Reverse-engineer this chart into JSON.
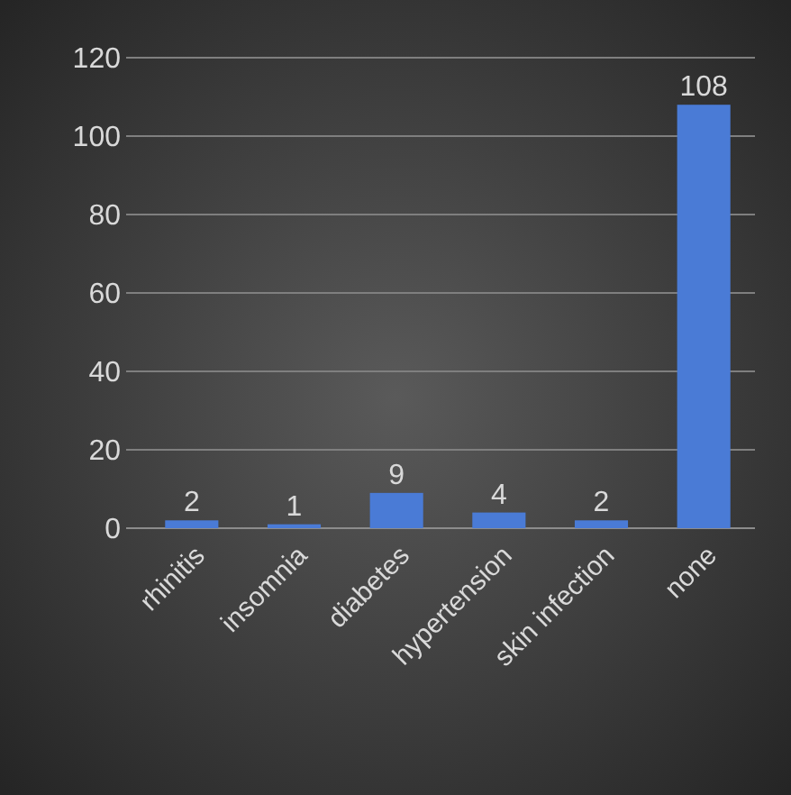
{
  "chart_data": {
    "type": "bar",
    "categories": [
      "rhinitis",
      "insomnia",
      "diabetes",
      "hypertension",
      "skin infection",
      "none"
    ],
    "values": [
      2,
      1,
      9,
      4,
      2,
      108
    ],
    "color": "#4a7bd6",
    "ylim": [
      0,
      120
    ],
    "yticks": [
      0,
      20,
      40,
      60,
      80,
      100,
      120
    ],
    "grid": "y",
    "data_labels": true
  }
}
